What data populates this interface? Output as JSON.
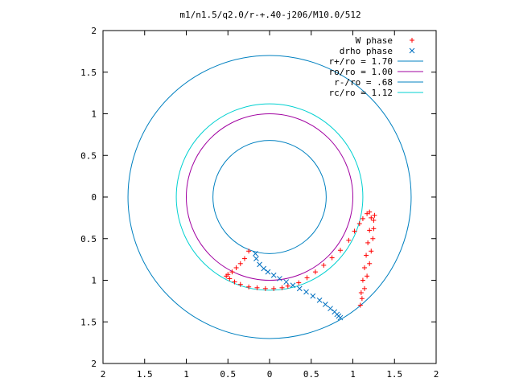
{
  "chart_data": {
    "type": "scatter",
    "title": "m1/n1.5/q2.0/r-+.40-j206/M10.0/512",
    "xlim": [
      -2,
      2
    ],
    "ylim": [
      -2,
      2
    ],
    "x_ticks": [
      {
        "value": -2,
        "label": "2"
      },
      {
        "value": -1.5,
        "label": "1.5"
      },
      {
        "value": -1,
        "label": "1"
      },
      {
        "value": -0.5,
        "label": "0.5"
      },
      {
        "value": 0,
        "label": "0"
      },
      {
        "value": 0.5,
        "label": "0.5"
      },
      {
        "value": 1,
        "label": "1"
      },
      {
        "value": 1.5,
        "label": "1.5"
      },
      {
        "value": 2,
        "label": "2"
      }
    ],
    "y_ticks": [
      {
        "value": 2,
        "label": "2"
      },
      {
        "value": 1.5,
        "label": "1.5"
      },
      {
        "value": 1,
        "label": "1"
      },
      {
        "value": 0.5,
        "label": "0.5"
      },
      {
        "value": 0,
        "label": "0"
      },
      {
        "value": -0.5,
        "label": "0.5"
      },
      {
        "value": -1,
        "label": "1"
      },
      {
        "value": -1.5,
        "label": "1.5"
      },
      {
        "value": -2,
        "label": "2"
      }
    ],
    "grid": false,
    "legend_position": "top-right",
    "circles": [
      {
        "name": "r+/ro = 1.70",
        "radius": 1.7,
        "color": "#0080c0"
      },
      {
        "name": "ro/ro = 1.00",
        "radius": 1.0,
        "color": "#a000a0"
      },
      {
        "name": "r-/ro = .68",
        "radius": 0.68,
        "color": "#0080c0"
      },
      {
        "name": "rc/ro = 1.12",
        "radius": 1.12,
        "color": "#00d0d0"
      }
    ],
    "series": [
      {
        "name": "W phase",
        "marker": "plus",
        "color": "#ff0000",
        "x": [
          -0.25,
          -0.3,
          -0.35,
          -0.4,
          -0.45,
          -0.5,
          -0.52,
          -0.48,
          -0.42,
          -0.35,
          -0.25,
          -0.15,
          -0.05,
          0.05,
          0.15,
          0.22,
          0.35,
          0.45,
          0.55,
          0.65,
          0.75,
          0.85,
          0.95,
          1.02,
          1.08,
          1.12,
          1.17,
          1.2,
          1.22,
          1.2,
          1.18,
          1.16,
          1.14,
          1.12,
          1.1,
          1.09,
          1.11,
          1.14,
          1.17,
          1.2,
          1.22,
          1.24,
          1.25,
          1.25,
          1.26
        ],
        "y": [
          -0.65,
          -0.74,
          -0.8,
          -0.85,
          -0.9,
          -0.93,
          -0.95,
          -0.98,
          -1.02,
          -1.05,
          -1.08,
          -1.09,
          -1.1,
          -1.1,
          -1.09,
          -1.07,
          -1.03,
          -0.97,
          -0.9,
          -0.82,
          -0.73,
          -0.64,
          -0.52,
          -0.41,
          -0.32,
          -0.26,
          -0.2,
          -0.18,
          -0.25,
          -0.4,
          -0.55,
          -0.7,
          -0.85,
          -1.0,
          -1.15,
          -1.3,
          -1.22,
          -1.1,
          -0.95,
          -0.8,
          -0.65,
          -0.5,
          -0.38,
          -0.28,
          -0.22
        ]
      },
      {
        "name": "drho phase",
        "marker": "cross",
        "color": "#0070c0",
        "x": [
          -0.17,
          -0.16,
          -0.12,
          -0.07,
          -0.02,
          0.05,
          0.12,
          0.2,
          0.28,
          0.36,
          0.44,
          0.52,
          0.6,
          0.67,
          0.73,
          0.78,
          0.81,
          0.83,
          0.85
        ],
        "y": [
          -0.68,
          -0.74,
          -0.81,
          -0.86,
          -0.9,
          -0.94,
          -0.98,
          -1.02,
          -1.06,
          -1.1,
          -1.14,
          -1.19,
          -1.24,
          -1.29,
          -1.34,
          -1.38,
          -1.41,
          -1.43,
          -1.45
        ]
      }
    ]
  }
}
